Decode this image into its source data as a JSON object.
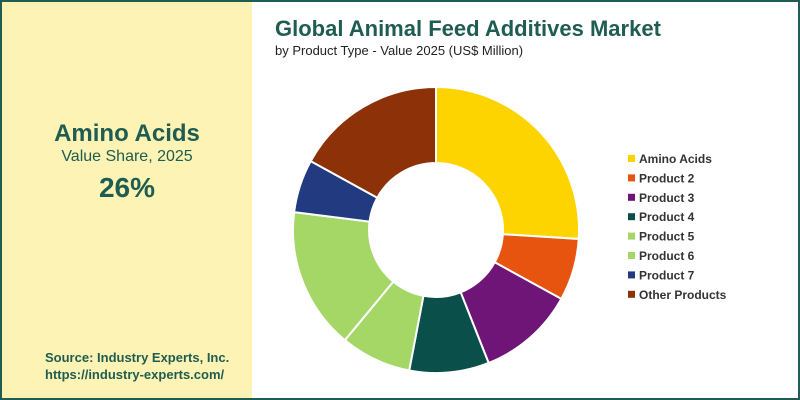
{
  "highlight": {
    "name": "Amino Acids",
    "subtitle": "Value Share, 2025",
    "value": "26%"
  },
  "source": {
    "line1": "Source: Industry Experts, Inc.",
    "line2": "https://industry-experts.com/"
  },
  "colors": {
    "accent": "#1f5c52",
    "panel_background": "#fdf3b4",
    "border": "#1f5c52"
  },
  "chart_data": {
    "type": "donut",
    "title": "Global Animal Feed Additives Market",
    "subtitle": "by Product Type - Value 2025 (US$ Million)",
    "legend_position": "right",
    "unit": "percent share",
    "slices": [
      {
        "label": "Amino Acids",
        "value": 26,
        "color": "#fdd400"
      },
      {
        "label": "Product 2",
        "value": 7,
        "color": "#e65410"
      },
      {
        "label": "Product 3",
        "value": 11,
        "color": "#6e1577"
      },
      {
        "label": "Product 4",
        "value": 9,
        "color": "#0b4f4b"
      },
      {
        "label": "Product 5",
        "value": 8,
        "color": "#a4d765"
      },
      {
        "label": "Product 6",
        "value": 16,
        "color": "#a4d765"
      },
      {
        "label": "Product 7",
        "value": 6,
        "color": "#213a80"
      },
      {
        "label": "Other Products",
        "value": 17,
        "color": "#8d3109"
      }
    ]
  }
}
